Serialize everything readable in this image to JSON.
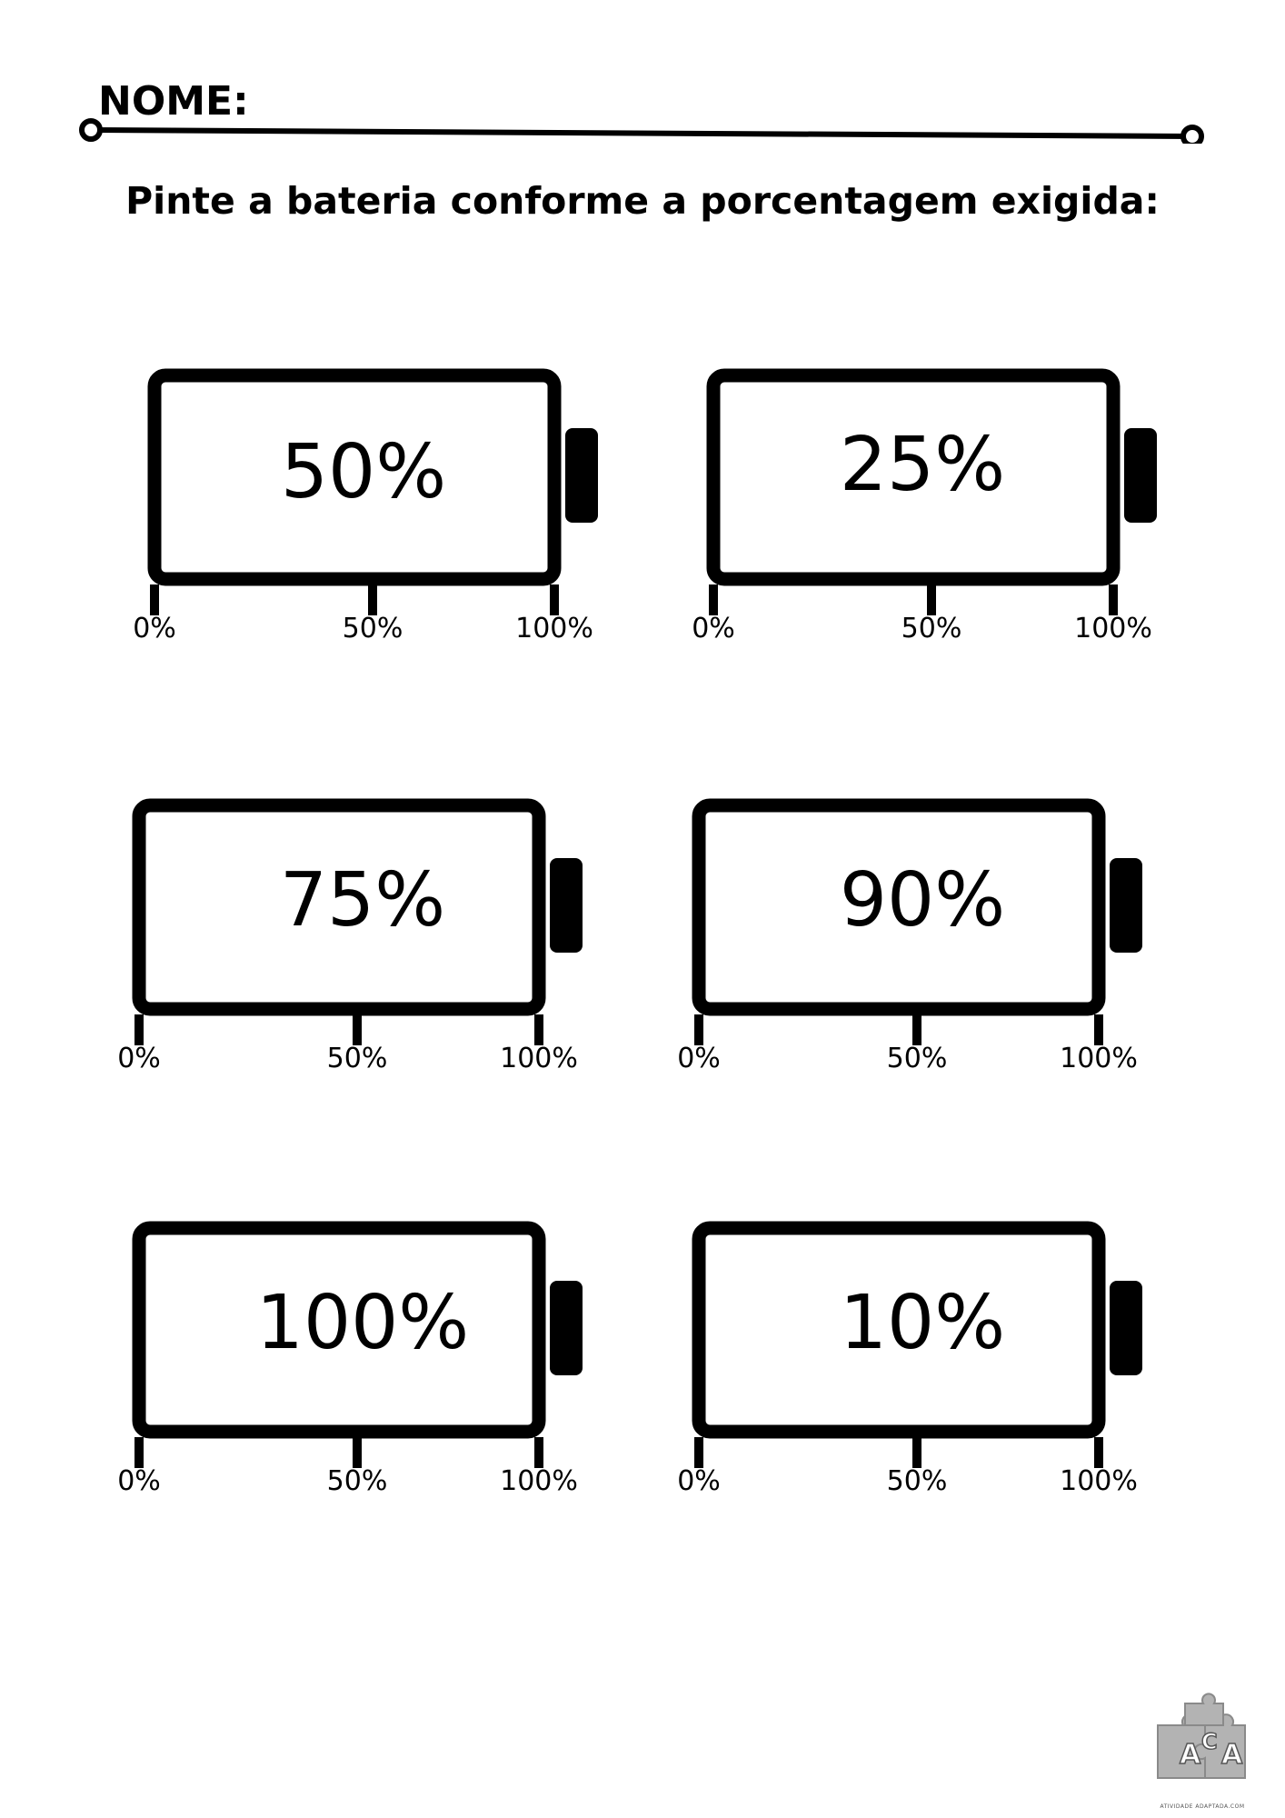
{
  "header": {
    "name_label": "NOME:",
    "instruction": "Pinte a bateria conforme a porcentagem exigida:"
  },
  "scale_labels": {
    "start": "0%",
    "middle": "50%",
    "end": "100%"
  },
  "batteries": [
    {
      "label": "50%",
      "required_fill": 0.5
    },
    {
      "label": "25%",
      "required_fill": 0.25
    },
    {
      "label": "75%",
      "required_fill": 0.75
    },
    {
      "label": "90%",
      "required_fill": 0.9
    },
    {
      "label": "100%",
      "required_fill": 1.0
    },
    {
      "label": "10%",
      "required_fill": 0.1
    }
  ],
  "logo": {
    "letters": "ACA",
    "caption": "ATIVIDADE ADAPTADA.COM"
  },
  "colors": {
    "ink": "#000000",
    "paper": "#ffffff",
    "logo_gray": "#b3b3b3"
  }
}
